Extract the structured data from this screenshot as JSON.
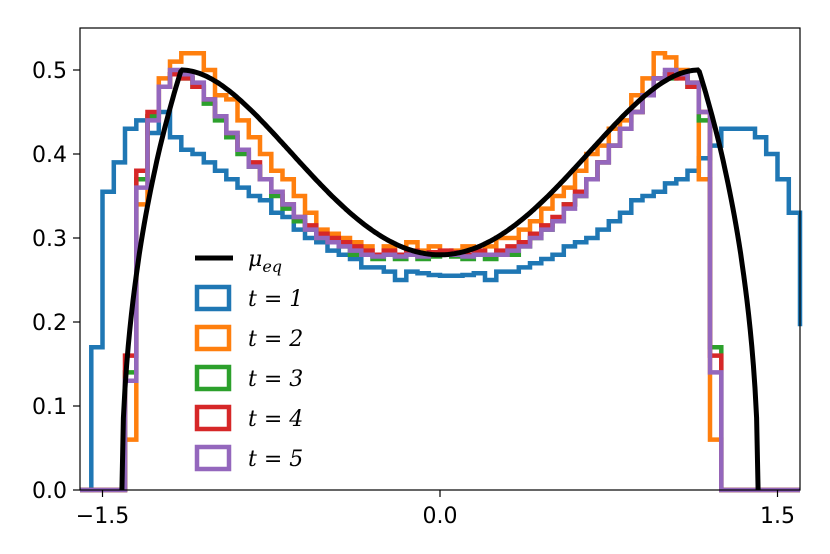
{
  "chart_data": {
    "type": "histogram",
    "title": "",
    "xlabel": "",
    "ylabel": "",
    "xlim": [
      -1.6,
      1.6
    ],
    "ylim": [
      0.0,
      0.55
    ],
    "x_ticks": [
      {
        "value": -1.5,
        "label": "−1.5"
      },
      {
        "value": 0.0,
        "label": "0.0"
      },
      {
        "value": 1.5,
        "label": "1.5"
      }
    ],
    "y_ticks": [
      {
        "value": 0.0,
        "label": "0.0"
      },
      {
        "value": 0.1,
        "label": "0.1"
      },
      {
        "value": 0.2,
        "label": "0.2"
      },
      {
        "value": 0.3,
        "label": "0.3"
      },
      {
        "value": 0.4,
        "label": "0.4"
      },
      {
        "value": 0.5,
        "label": "0.5"
      }
    ],
    "grid": false,
    "legend_position": "lower-left",
    "curve": {
      "name": "μ_eq",
      "color": "#000000",
      "support": [
        -1.414,
        1.414
      ],
      "peak_x": 1.15,
      "peak_y": 0.5,
      "center_y": 0.28,
      "style": "solid"
    },
    "series": [
      {
        "name": "t = 1",
        "color": "#1f77b4",
        "bin_edges": [
          -1.6,
          -1.55,
          -1.5,
          -1.45,
          -1.4,
          -1.35,
          -1.3,
          -1.25,
          -1.2,
          -1.15,
          -1.1,
          -1.05,
          -1.0,
          -0.95,
          -0.9,
          -0.85,
          -0.8,
          -0.75,
          -0.7,
          -0.65,
          -0.6,
          -0.55,
          -0.5,
          -0.45,
          -0.4,
          -0.35,
          -0.3,
          -0.25,
          -0.2,
          -0.15,
          -0.1,
          -0.05,
          0.0,
          0.05,
          0.1,
          0.15,
          0.2,
          0.25,
          0.3,
          0.35,
          0.4,
          0.45,
          0.5,
          0.55,
          0.6,
          0.65,
          0.7,
          0.75,
          0.8,
          0.85,
          0.9,
          0.95,
          1.0,
          1.05,
          1.1,
          1.15,
          1.2,
          1.25,
          1.3,
          1.35,
          1.4,
          1.45,
          1.5,
          1.55,
          1.6
        ],
        "values": [
          0.0,
          0.17,
          0.355,
          0.39,
          0.43,
          0.44,
          0.425,
          0.45,
          0.42,
          0.405,
          0.4,
          0.39,
          0.38,
          0.37,
          0.36,
          0.35,
          0.345,
          0.33,
          0.325,
          0.31,
          0.3,
          0.295,
          0.285,
          0.28,
          0.275,
          0.265,
          0.265,
          0.26,
          0.25,
          0.26,
          0.258,
          0.256,
          0.255,
          0.255,
          0.256,
          0.258,
          0.25,
          0.26,
          0.26,
          0.265,
          0.27,
          0.275,
          0.28,
          0.29,
          0.295,
          0.3,
          0.31,
          0.32,
          0.33,
          0.345,
          0.35,
          0.355,
          0.365,
          0.37,
          0.38,
          0.395,
          0.41,
          0.43,
          0.43,
          0.43,
          0.42,
          0.4,
          0.37,
          0.33,
          0.195
        ]
      },
      {
        "name": "t = 2",
        "color": "#ff7f0e",
        "bin_edges": [
          -1.6,
          -1.55,
          -1.5,
          -1.45,
          -1.4,
          -1.35,
          -1.3,
          -1.25,
          -1.2,
          -1.15,
          -1.1,
          -1.05,
          -1.0,
          -0.95,
          -0.9,
          -0.85,
          -0.8,
          -0.75,
          -0.7,
          -0.65,
          -0.6,
          -0.55,
          -0.5,
          -0.45,
          -0.4,
          -0.35,
          -0.3,
          -0.25,
          -0.2,
          -0.15,
          -0.1,
          -0.05,
          0.0,
          0.05,
          0.1,
          0.15,
          0.2,
          0.25,
          0.3,
          0.35,
          0.4,
          0.45,
          0.5,
          0.55,
          0.6,
          0.65,
          0.7,
          0.75,
          0.8,
          0.85,
          0.9,
          0.95,
          1.0,
          1.05,
          1.1,
          1.15,
          1.2,
          1.25,
          1.3,
          1.35,
          1.4,
          1.45,
          1.5,
          1.55,
          1.6
        ],
        "values": [
          0.0,
          0.0,
          0.0,
          0.0,
          0.06,
          0.34,
          0.445,
          0.49,
          0.51,
          0.52,
          0.52,
          0.5,
          0.47,
          0.465,
          0.44,
          0.42,
          0.4,
          0.38,
          0.37,
          0.35,
          0.33,
          0.31,
          0.305,
          0.3,
          0.295,
          0.29,
          0.28,
          0.29,
          0.28,
          0.295,
          0.285,
          0.29,
          0.28,
          0.285,
          0.29,
          0.28,
          0.29,
          0.3,
          0.3,
          0.31,
          0.32,
          0.335,
          0.35,
          0.36,
          0.38,
          0.4,
          0.41,
          0.43,
          0.44,
          0.47,
          0.49,
          0.52,
          0.515,
          0.5,
          0.485,
          0.37,
          0.06,
          0.0,
          0.0,
          0.0,
          0.0,
          0.0,
          0.0,
          0.0,
          0.0
        ]
      },
      {
        "name": "t = 3",
        "color": "#2ca02c",
        "bin_edges": [
          -1.6,
          -1.55,
          -1.5,
          -1.45,
          -1.4,
          -1.35,
          -1.3,
          -1.25,
          -1.2,
          -1.15,
          -1.1,
          -1.05,
          -1.0,
          -0.95,
          -0.9,
          -0.85,
          -0.8,
          -0.75,
          -0.7,
          -0.65,
          -0.6,
          -0.55,
          -0.5,
          -0.45,
          -0.4,
          -0.35,
          -0.3,
          -0.25,
          -0.2,
          -0.15,
          -0.1,
          -0.05,
          0.0,
          0.05,
          0.1,
          0.15,
          0.2,
          0.25,
          0.3,
          0.35,
          0.4,
          0.45,
          0.5,
          0.55,
          0.6,
          0.65,
          0.7,
          0.75,
          0.8,
          0.85,
          0.9,
          0.95,
          1.0,
          1.05,
          1.1,
          1.15,
          1.2,
          1.25,
          1.3,
          1.35,
          1.4,
          1.45,
          1.5,
          1.55,
          1.6
        ],
        "values": [
          0.0,
          0.0,
          0.0,
          0.0,
          0.14,
          0.37,
          0.445,
          0.48,
          0.495,
          0.49,
          0.48,
          0.46,
          0.44,
          0.42,
          0.4,
          0.385,
          0.37,
          0.35,
          0.335,
          0.32,
          0.31,
          0.3,
          0.295,
          0.29,
          0.28,
          0.28,
          0.275,
          0.28,
          0.275,
          0.28,
          0.275,
          0.278,
          0.28,
          0.278,
          0.275,
          0.28,
          0.275,
          0.28,
          0.28,
          0.29,
          0.3,
          0.31,
          0.32,
          0.34,
          0.35,
          0.37,
          0.39,
          0.41,
          0.43,
          0.45,
          0.47,
          0.49,
          0.49,
          0.495,
          0.48,
          0.44,
          0.17,
          0.0,
          0.0,
          0.0,
          0.0,
          0.0,
          0.0,
          0.0,
          0.0
        ]
      },
      {
        "name": "t = 4",
        "color": "#d62728",
        "bin_edges": [
          -1.6,
          -1.55,
          -1.5,
          -1.45,
          -1.4,
          -1.35,
          -1.3,
          -1.25,
          -1.2,
          -1.15,
          -1.1,
          -1.05,
          -1.0,
          -0.95,
          -0.9,
          -0.85,
          -0.8,
          -0.75,
          -0.7,
          -0.65,
          -0.6,
          -0.55,
          -0.5,
          -0.45,
          -0.4,
          -0.35,
          -0.3,
          -0.25,
          -0.2,
          -0.15,
          -0.1,
          -0.05,
          0.0,
          0.05,
          0.1,
          0.15,
          0.2,
          0.25,
          0.3,
          0.35,
          0.4,
          0.45,
          0.5,
          0.55,
          0.6,
          0.65,
          0.7,
          0.75,
          0.8,
          0.85,
          0.9,
          0.95,
          1.0,
          1.05,
          1.1,
          1.15,
          1.2,
          1.25,
          1.3,
          1.35,
          1.4,
          1.45,
          1.5,
          1.55,
          1.6
        ],
        "values": [
          0.0,
          0.0,
          0.0,
          0.0,
          0.16,
          0.38,
          0.45,
          0.48,
          0.495,
          0.49,
          0.48,
          0.465,
          0.445,
          0.425,
          0.405,
          0.39,
          0.37,
          0.355,
          0.34,
          0.325,
          0.315,
          0.305,
          0.3,
          0.295,
          0.29,
          0.285,
          0.28,
          0.285,
          0.28,
          0.285,
          0.28,
          0.283,
          0.285,
          0.283,
          0.28,
          0.285,
          0.28,
          0.285,
          0.29,
          0.295,
          0.305,
          0.315,
          0.325,
          0.34,
          0.355,
          0.37,
          0.39,
          0.41,
          0.43,
          0.45,
          0.47,
          0.49,
          0.495,
          0.49,
          0.48,
          0.45,
          0.16,
          0.0,
          0.0,
          0.0,
          0.0,
          0.0,
          0.0,
          0.0,
          0.0
        ]
      },
      {
        "name": "t = 5",
        "color": "#9467bd",
        "bin_edges": [
          -1.6,
          -1.55,
          -1.5,
          -1.45,
          -1.4,
          -1.35,
          -1.3,
          -1.25,
          -1.2,
          -1.15,
          -1.1,
          -1.05,
          -1.0,
          -0.95,
          -0.9,
          -0.85,
          -0.8,
          -0.75,
          -0.7,
          -0.65,
          -0.6,
          -0.55,
          -0.5,
          -0.45,
          -0.4,
          -0.35,
          -0.3,
          -0.25,
          -0.2,
          -0.15,
          -0.1,
          -0.05,
          0.0,
          0.05,
          0.1,
          0.15,
          0.2,
          0.25,
          0.3,
          0.35,
          0.4,
          0.45,
          0.5,
          0.55,
          0.6,
          0.65,
          0.7,
          0.75,
          0.8,
          0.85,
          0.9,
          0.95,
          1.0,
          1.05,
          1.1,
          1.15,
          1.2,
          1.25,
          1.3,
          1.35,
          1.4,
          1.45,
          1.5,
          1.55,
          1.6
        ],
        "values": [
          0.0,
          0.0,
          0.0,
          0.0,
          0.13,
          0.36,
          0.44,
          0.48,
          0.5,
          0.495,
          0.485,
          0.465,
          0.445,
          0.425,
          0.405,
          0.385,
          0.37,
          0.355,
          0.34,
          0.325,
          0.31,
          0.3,
          0.295,
          0.29,
          0.285,
          0.28,
          0.278,
          0.28,
          0.278,
          0.28,
          0.278,
          0.28,
          0.28,
          0.28,
          0.278,
          0.28,
          0.28,
          0.28,
          0.285,
          0.29,
          0.3,
          0.31,
          0.32,
          0.335,
          0.35,
          0.37,
          0.39,
          0.41,
          0.43,
          0.45,
          0.47,
          0.49,
          0.5,
          0.495,
          0.485,
          0.45,
          0.14,
          0.0,
          0.0,
          0.0,
          0.0,
          0.0,
          0.0,
          0.0,
          0.0
        ]
      }
    ],
    "legend": [
      {
        "label": "μ",
        "subscript": "eq",
        "kind": "line",
        "color": "#000000"
      },
      {
        "label": "t = 1",
        "kind": "box",
        "color": "#1f77b4"
      },
      {
        "label": "t = 2",
        "kind": "box",
        "color": "#ff7f0e"
      },
      {
        "label": "t = 3",
        "kind": "box",
        "color": "#2ca02c"
      },
      {
        "label": "t = 4",
        "kind": "box",
        "color": "#d62728"
      },
      {
        "label": "t = 5",
        "kind": "box",
        "color": "#9467bd"
      }
    ]
  }
}
